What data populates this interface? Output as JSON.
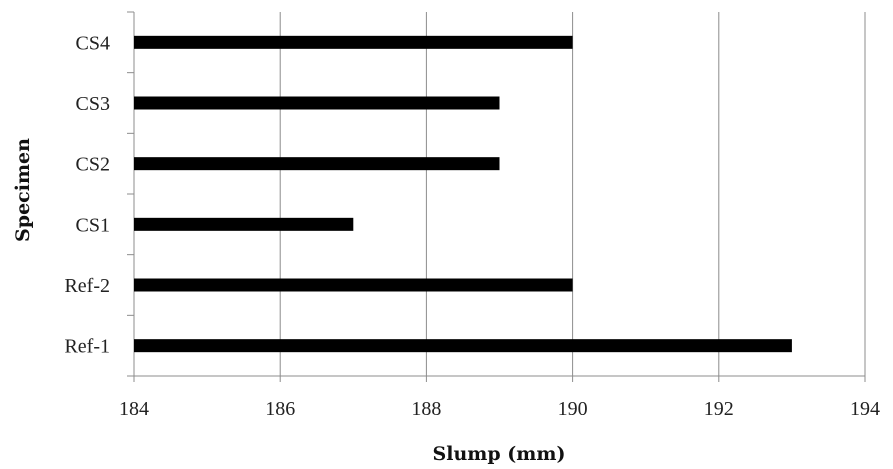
{
  "chart_data": {
    "type": "bar",
    "orientation": "horizontal",
    "categories": [
      "Ref-1",
      "Ref-2",
      "CS1",
      "CS2",
      "CS3",
      "CS4"
    ],
    "values": [
      193,
      190,
      187,
      189,
      189,
      190
    ],
    "xlabel": "Slump (mm)",
    "ylabel": "Specimen",
    "xlim": [
      184,
      194
    ],
    "xticks": [
      184,
      186,
      188,
      190,
      192,
      194
    ],
    "xtick_labels": [
      "184",
      "186",
      "188",
      "190",
      "192",
      "194"
    ],
    "grid": "vertical-major",
    "legend": "none",
    "colors": {
      "bar": "#000000",
      "grid": "#8c8c8c",
      "axis": "#8c8c8c"
    }
  }
}
